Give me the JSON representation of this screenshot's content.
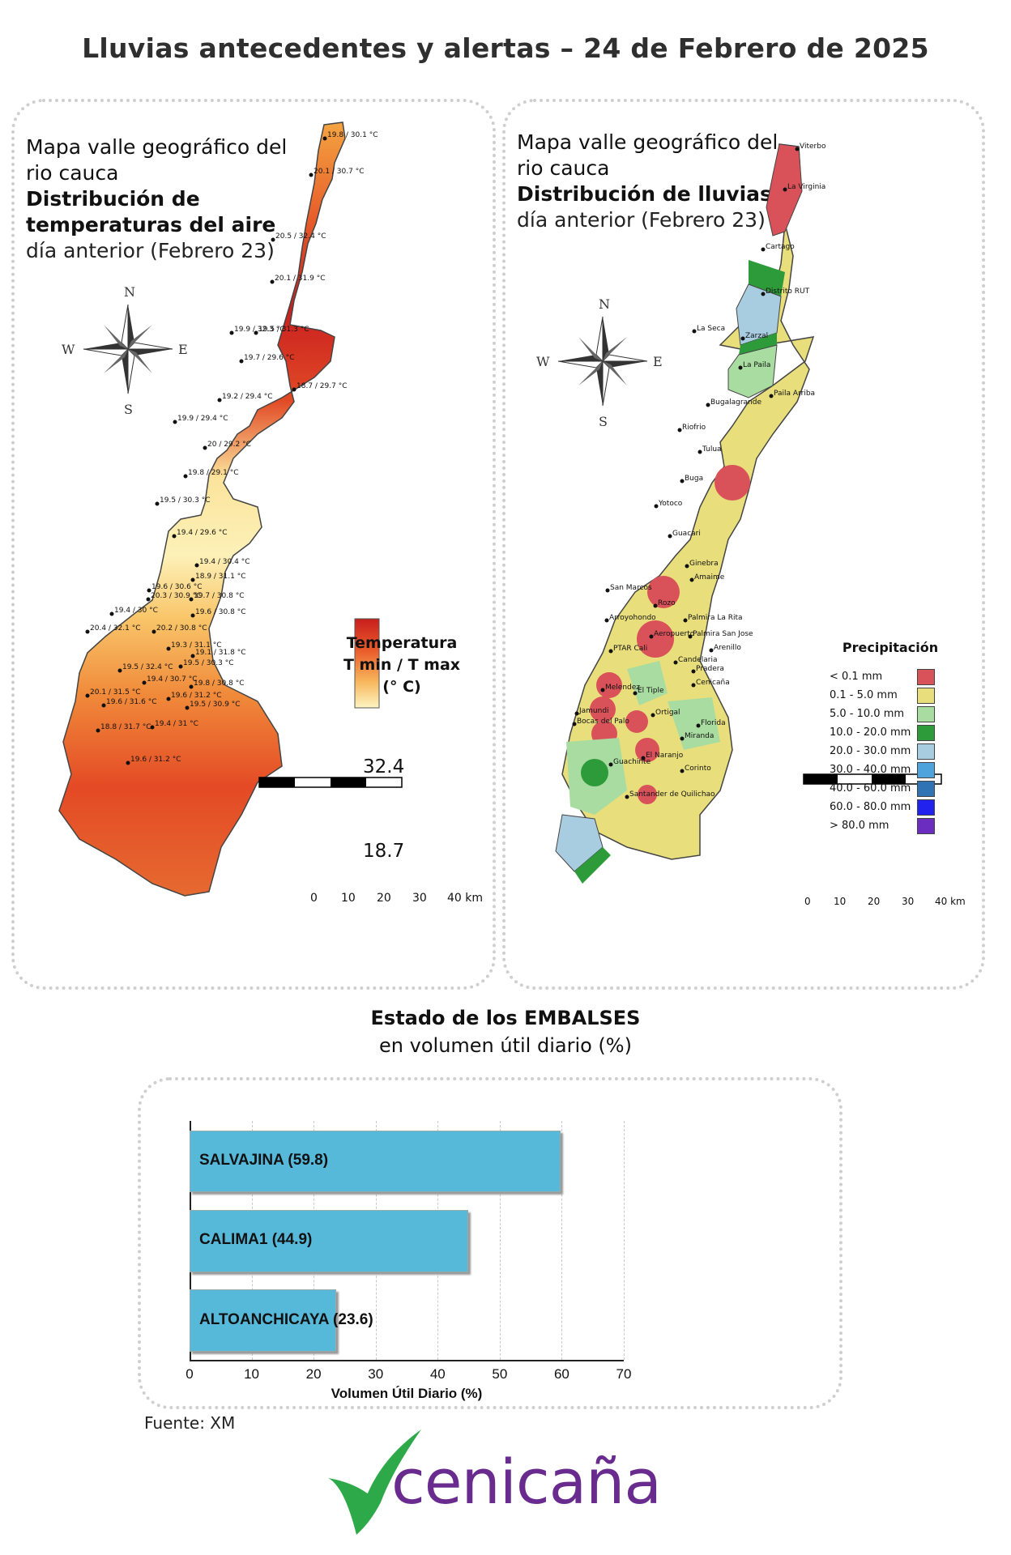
{
  "title": "Lluvias antecedentes y alertas – 24 de Febrero de 2025",
  "temp_map": {
    "title_line1": "Mapa valle geográfico del",
    "title_line2": "rio cauca",
    "title_line3": "Distribución de",
    "title_line4": "temperaturas del aire",
    "title_line5": "día anterior (Febrero 23)",
    "legend_line1": "Temperatura",
    "legend_line2": "T min / T max",
    "legend_line3": "(° C)",
    "legend_max": "32.4",
    "legend_min": "18.7",
    "stations": [
      "19.8 / 30.1 °C",
      "20.1 / 30.7 °C",
      "20.5 / 32.4 °C",
      "20.1 / 31.9 °C",
      "19.9 / 32.3 °C",
      "19.5 / 31.3 °C",
      "19.7 / 29.6 °C",
      "18.7 / 29.7 °C",
      "19.2 / 29.4 °C",
      "19.9 / 29.4 °C",
      "20 / 29.2 °C",
      "19.8 / 29.1 °C",
      "19.5 / 30.3 °C",
      "19.4 / 29.6 °C",
      "19.4 / 30.4 °C",
      "18.9 / 31.1 °C",
      "19.6 / 30.6 °C",
      "20.3 / 30.9 °C",
      "19.7 / 30.8 °C",
      "19.4 / 30 °C",
      "19.6 / 30.8 °C",
      "20.4 / 32.1 °C",
      "20.2 / 30.8 °C",
      "19.3 / 31.1 °C",
      "19.1 / 31.8 °C",
      "19.5 / 32.4 °C",
      "19.5 / 30.3 °C",
      "19.4 / 30.7 °C",
      "19.8 / 30.8 °C",
      "20.1 / 31.5 °C",
      "19.6 / 31.6 °C",
      "19.6 / 31.2 °C",
      "19.5 / 30.9 °C",
      "18.8 / 31.7 °C",
      "19.4 / 31 °C",
      "19.6 / 31.2 °C"
    ]
  },
  "rain_map": {
    "title_line1": "Mapa valle geográfico del",
    "title_line2": "rio cauca",
    "title_line3": "Distribución de lluvias",
    "title_line4": "día anterior (Febrero 23)",
    "legend_title": "Precipitación",
    "legend": [
      {
        "label": "< 0.1 mm",
        "color": "#d9525a"
      },
      {
        "label": "0.1 - 5.0 mm",
        "color": "#e8df7c"
      },
      {
        "label": "5.0 - 10.0 mm",
        "color": "#a9dca0"
      },
      {
        "label": "10.0 - 20.0 mm",
        "color": "#2e9b3a"
      },
      {
        "label": "20.0 - 30.0 mm",
        "color": "#a8cde0"
      },
      {
        "label": "30.0 - 40.0 mm",
        "color": "#4ea3dc"
      },
      {
        "label": "40.0 - 60.0 mm",
        "color": "#2f73b4"
      },
      {
        "label": "60.0 - 80.0 mm",
        "color": "#2222ee"
      },
      {
        "label": "> 80.0 mm",
        "color": "#6a2dbf"
      }
    ],
    "places": [
      "Viterbo",
      "La Virginia",
      "Cartago",
      "Distrito RUT",
      "La Seca",
      "Zarzal",
      "La Paila",
      "Paila Arriba",
      "Bugalagrande",
      "Riofrio",
      "Tulua",
      "Buga",
      "Yotoco",
      "Guacari",
      "Ginebra",
      "Amaime",
      "San Marcos",
      "Rozo",
      "Palmira La Rita",
      "Arroyohondo",
      "Palmira San Jose",
      "Aeropuerto",
      "Arenillo",
      "PTAR Cali",
      "Candelaria",
      "Pradera",
      "Melendez",
      "Cenicaña",
      "El Tiple",
      "Jamundi",
      "Bocas del Palo",
      "Ortigal",
      "Florida",
      "Miranda",
      "El Naranjo",
      "Guachinte",
      "Corinto",
      "Santander de Quilichao"
    ]
  },
  "scale_bar": {
    "labels": [
      "0",
      "10",
      "20",
      "30",
      "40 km"
    ]
  },
  "compass": {
    "n": "N",
    "s": "S",
    "e": "E",
    "w": "W"
  },
  "reservoirs": {
    "title_line1": "Estado de los EMBALSES",
    "title_line2": "en volumen útil diario (%)",
    "xlabel": "Volumen Útil Diario (%)",
    "ticks": [
      "0",
      "10",
      "20",
      "30",
      "40",
      "50",
      "60",
      "70"
    ]
  },
  "chart_data": {
    "type": "bar",
    "orientation": "horizontal",
    "categories": [
      "SALVAJINA",
      "CALIMA1",
      "ALTOANCHICAYA"
    ],
    "values": [
      59.8,
      44.9,
      23.6
    ],
    "bar_labels": [
      "SALVAJINA (59.8)",
      "CALIMA1 (44.9)",
      "ALTOANCHICAYA (23.6)"
    ],
    "xlabel": "Volumen Útil Diario (%)",
    "ylabel": "",
    "xlim": [
      0,
      70
    ],
    "grid": true,
    "bar_color": "#56b9da"
  },
  "source": "Fuente: XM",
  "logo": {
    "text": "cenicaña",
    "color": "#6a2b8f",
    "leaf_color": "#2ea94a"
  }
}
